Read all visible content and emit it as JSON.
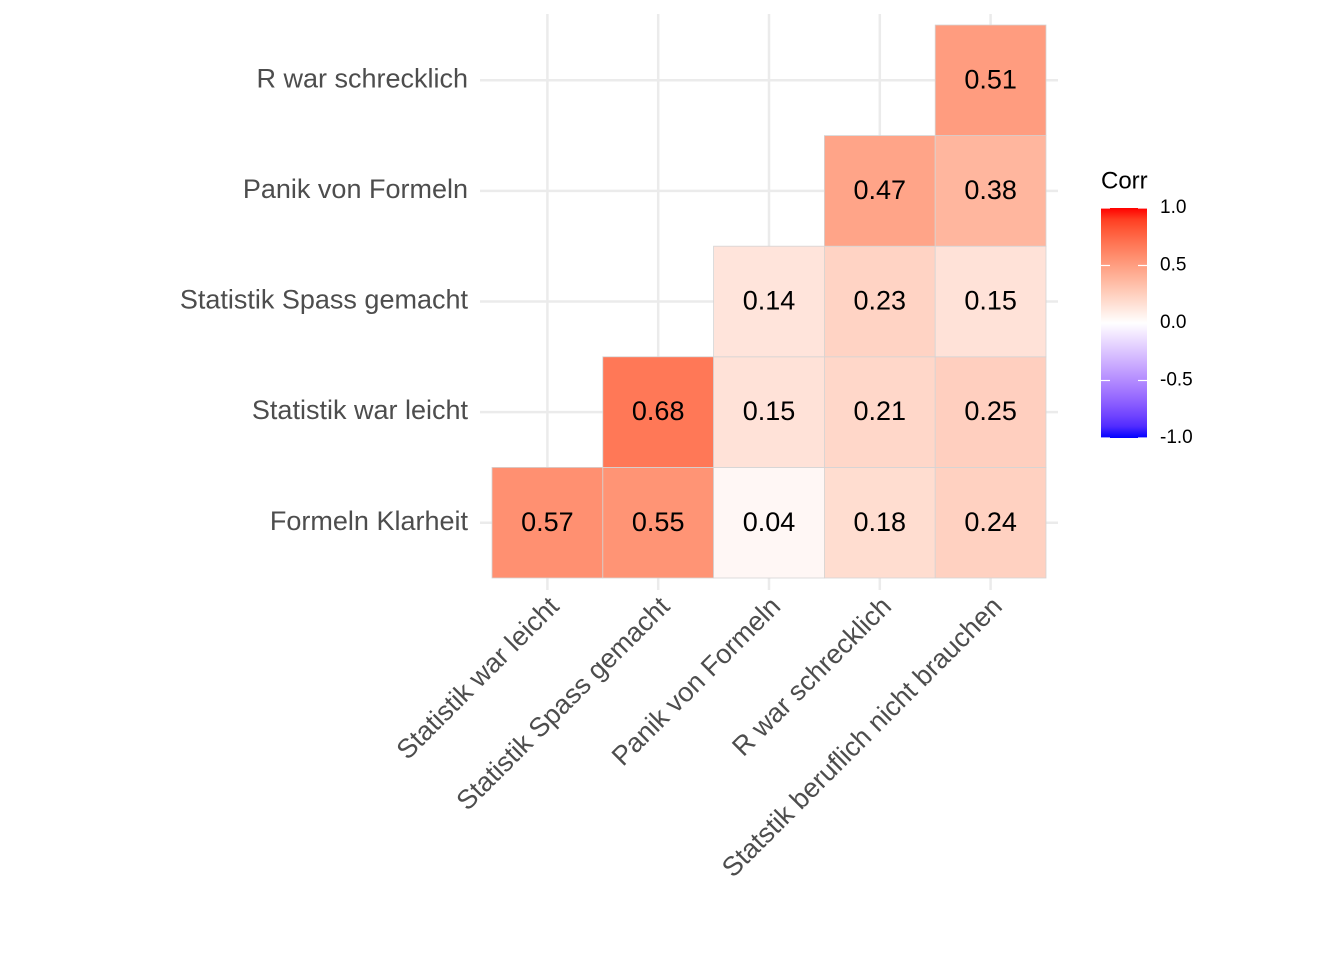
{
  "chart_data": {
    "type": "heatmap",
    "x_categories": [
      "Statistik war leicht",
      "Statistik Spass gemacht",
      "Panik von Formeln",
      "R war schrecklich",
      "Statstik beruflich nicht brauchen"
    ],
    "y_categories": [
      "Formeln Klarheit",
      "Statistik war leicht",
      "Statistik Spass gemacht",
      "Panik von Formeln",
      "R war schrecklich"
    ],
    "values": [
      [
        0.57,
        0.55,
        0.04,
        0.18,
        0.24
      ],
      [
        null,
        0.68,
        0.15,
        0.21,
        0.25
      ],
      [
        null,
        null,
        0.14,
        0.23,
        0.15
      ],
      [
        null,
        null,
        null,
        0.47,
        0.38
      ],
      [
        null,
        null,
        null,
        null,
        0.51
      ]
    ],
    "legend_title": "Corr",
    "clim": [
      -1,
      1
    ],
    "legend_ticks": [
      {
        "value": 1,
        "label": "1.0"
      },
      0.5,
      {
        "value": 0,
        "label": "0.0"
      },
      -0.5,
      {
        "value": -1,
        "label": "-1.0"
      }
    ],
    "colors": {
      "low": "#0000ff",
      "mid": "#ffffff",
      "high": "#ff0000"
    },
    "grid": true
  }
}
